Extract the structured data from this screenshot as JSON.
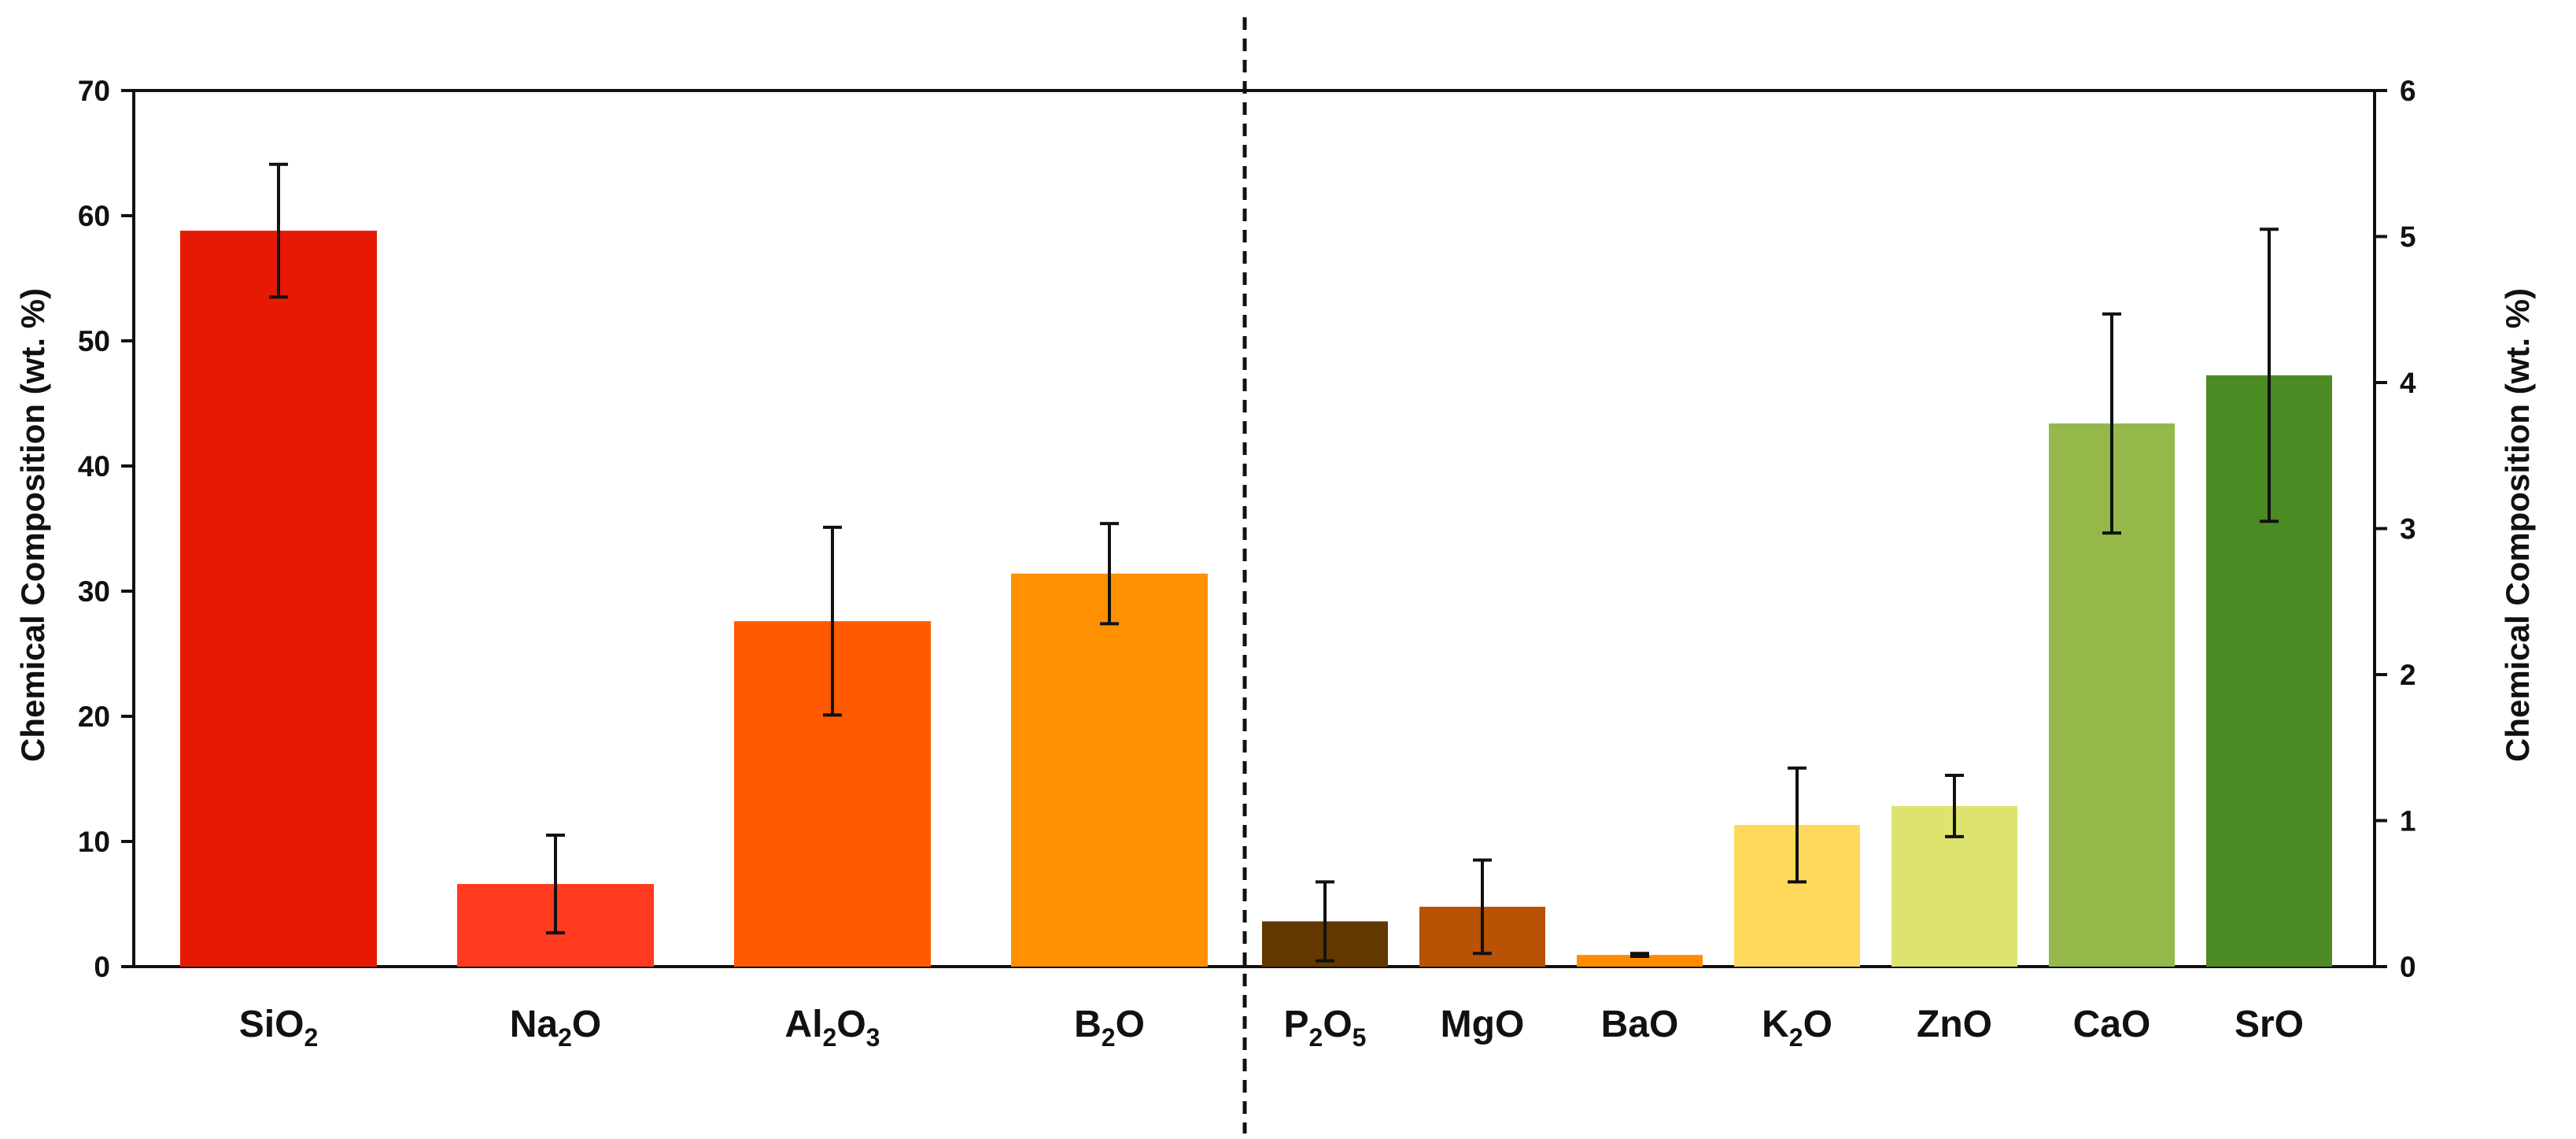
{
  "chart_data": {
    "type": "bar",
    "left_panel": {
      "ylabel": "Chemical Composition (wt. %)",
      "ylim": [
        0,
        70
      ],
      "yticks": [
        0,
        10,
        20,
        30,
        40,
        50,
        60,
        70
      ],
      "bars": [
        {
          "label": "SiO2",
          "parts": [
            [
              "SiO",
              ""
            ],
            [
              "2",
              "sub"
            ]
          ],
          "value": 58.8,
          "err": 5.3,
          "color": "#E61A04"
        },
        {
          "label": "Na2O",
          "parts": [
            [
              "Na",
              ""
            ],
            [
              "2",
              "sub"
            ],
            [
              "O",
              ""
            ]
          ],
          "value": 6.6,
          "err": 3.9,
          "color": "#FF3A1F"
        },
        {
          "label": "Al2O3",
          "parts": [
            [
              "Al",
              ""
            ],
            [
              "2",
              "sub"
            ],
            [
              "O",
              ""
            ],
            [
              "3",
              "sub"
            ]
          ],
          "value": 27.6,
          "err": 7.5,
          "color": "#FF5A00"
        },
        {
          "label": "B2O",
          "parts": [
            [
              "B",
              ""
            ],
            [
              "2",
              "sub"
            ],
            [
              "O",
              ""
            ]
          ],
          "value": 31.4,
          "err": 4.0,
          "color": "#FF9100"
        }
      ]
    },
    "right_panel": {
      "ylabel": "Chemical Composition (wt. %)",
      "ylim": [
        0,
        6
      ],
      "yticks": [
        0,
        1,
        2,
        3,
        4,
        5,
        6
      ],
      "bars": [
        {
          "label": "P2O5",
          "parts": [
            [
              "P",
              ""
            ],
            [
              "2",
              "sub"
            ],
            [
              "O",
              ""
            ],
            [
              "5",
              "sub"
            ]
          ],
          "value": 0.31,
          "err": 0.27,
          "color": "#633800"
        },
        {
          "label": "MgO",
          "parts": [
            [
              "MgO",
              ""
            ]
          ],
          "value": 0.41,
          "err": 0.32,
          "color": "#B85205"
        },
        {
          "label": "BaO",
          "parts": [
            [
              "BaO",
              ""
            ]
          ],
          "value": 0.08,
          "err": 0.01,
          "color": "#FF8C00"
        },
        {
          "label": "K2O",
          "parts": [
            [
              "K",
              ""
            ],
            [
              "2",
              "sub"
            ],
            [
              "O",
              ""
            ]
          ],
          "value": 0.97,
          "err": 0.39,
          "color": "#FFD95C"
        },
        {
          "label": "ZnO",
          "parts": [
            [
              "ZnO",
              ""
            ]
          ],
          "value": 1.1,
          "err": 0.21,
          "color": "#DDE36E"
        },
        {
          "label": "CaO",
          "parts": [
            [
              "CaO",
              ""
            ]
          ],
          "value": 3.72,
          "err": 0.75,
          "color": "#94B84A"
        },
        {
          "label": "SrO",
          "parts": [
            [
              "SrO",
              ""
            ]
          ],
          "value": 4.05,
          "err": 1.0,
          "color": "#4C8A24"
        }
      ]
    }
  }
}
